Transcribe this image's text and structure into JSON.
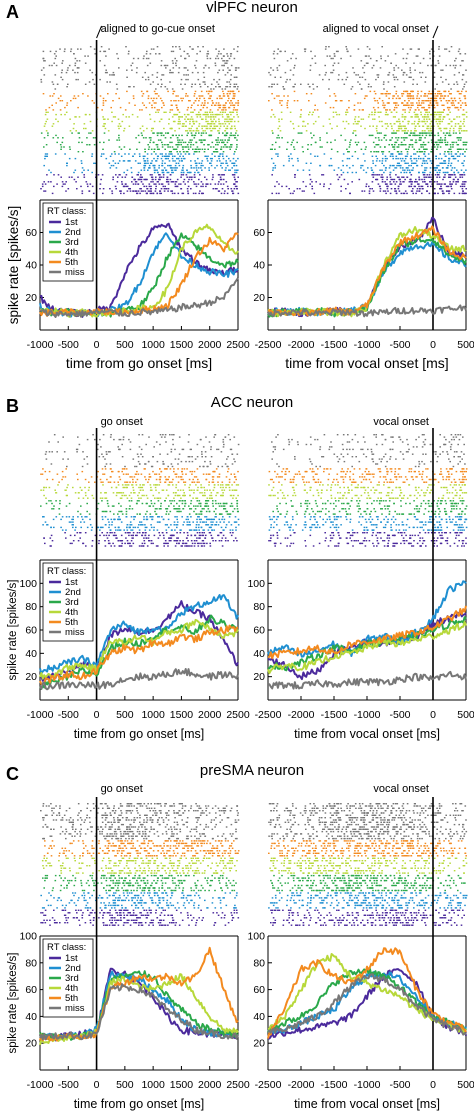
{
  "colors": {
    "1st": "#4b2a9c",
    "2nd": "#1f8fd1",
    "3rd": "#2aa84a",
    "4th": "#b7d83a",
    "5th": "#f38a1f",
    "miss": "#777777"
  },
  "chart_data": [
    {
      "type": "line",
      "panel_letter": "A",
      "title": "vlPFC neuron",
      "ylabel": "spike rate [spikes/s]",
      "ylim": [
        0,
        80
      ],
      "yticks": [
        20,
        40,
        60
      ],
      "legend": {
        "title": "RT class:",
        "entries": [
          "1st",
          "2nd",
          "3rd",
          "4th",
          "5th",
          "miss"
        ],
        "placement": "top-left"
      },
      "subplots": [
        {
          "alignment_label": "aligned to go-cue onset",
          "xlabel": "time from go onset [ms]",
          "xlim": [
            -1000,
            2500
          ],
          "xticks": [
            -1000,
            -500,
            0,
            500,
            1000,
            1500,
            2000,
            2500
          ],
          "x": [
            -1000,
            -750,
            -500,
            -250,
            0,
            250,
            500,
            750,
            1000,
            1250,
            1500,
            1750,
            2000,
            2250,
            2500
          ],
          "series": [
            {
              "name": "1st",
              "values": [
                20,
                12,
                11,
                10,
                12,
                14,
                35,
                50,
                62,
                65,
                50,
                42,
                36,
                35,
                38
              ]
            },
            {
              "name": "2nd",
              "values": [
                15,
                11,
                10,
                11,
                10,
                12,
                15,
                28,
                48,
                60,
                45,
                40,
                36,
                34,
                36
              ]
            },
            {
              "name": "3rd",
              "values": [
                12,
                10,
                12,
                10,
                11,
                10,
                13,
                14,
                25,
                45,
                58,
                52,
                44,
                40,
                42
              ]
            },
            {
              "name": "4th",
              "values": [
                11,
                12,
                10,
                11,
                10,
                11,
                12,
                13,
                14,
                25,
                50,
                60,
                64,
                52,
                48
              ]
            },
            {
              "name": "5th",
              "values": [
                10,
                11,
                11,
                10,
                12,
                11,
                11,
                12,
                13,
                15,
                28,
                45,
                55,
                50,
                60
              ]
            },
            {
              "name": "miss",
              "values": [
                11,
                10,
                10,
                10,
                11,
                11,
                10,
                11,
                11,
                12,
                14,
                15,
                17,
                20,
                32
              ]
            }
          ]
        },
        {
          "alignment_label": "aligned to vocal onset",
          "xlabel": "time from vocal onset [ms]",
          "xlim": [
            -2500,
            500
          ],
          "xticks": [
            -2500,
            -2000,
            -1500,
            -1000,
            -500,
            0,
            500
          ],
          "x": [
            -2500,
            -2250,
            -2000,
            -1750,
            -1500,
            -1250,
            -1000,
            -750,
            -500,
            -250,
            0,
            250,
            500
          ],
          "series": [
            {
              "name": "1st",
              "values": [
                11,
                12,
                10,
                11,
                12,
                11,
                14,
                38,
                52,
                55,
                68,
                48,
                45
              ]
            },
            {
              "name": "2nd",
              "values": [
                12,
                11,
                12,
                10,
                11,
                12,
                15,
                35,
                48,
                52,
                52,
                44,
                40
              ]
            },
            {
              "name": "3rd",
              "values": [
                10,
                11,
                11,
                12,
                10,
                11,
                13,
                36,
                52,
                55,
                56,
                46,
                42
              ]
            },
            {
              "name": "4th",
              "values": [
                11,
                10,
                12,
                11,
                11,
                10,
                14,
                40,
                58,
                62,
                58,
                50,
                50
              ]
            },
            {
              "name": "5th",
              "values": [
                12,
                11,
                10,
                11,
                12,
                11,
                15,
                38,
                54,
                58,
                62,
                48,
                44
              ]
            },
            {
              "name": "miss",
              "values": [
                10,
                11,
                11,
                10,
                11,
                11,
                10,
                11,
                12,
                12,
                12,
                13,
                14
              ]
            }
          ]
        }
      ]
    },
    {
      "type": "line",
      "panel_letter": "B",
      "title": "ACC neuron",
      "ylabel": "spike rate [spikes/s]",
      "ylim": [
        0,
        120
      ],
      "yticks": [
        20,
        40,
        60,
        80,
        100
      ],
      "legend": {
        "title": "RT class:",
        "entries": [
          "1st",
          "2nd",
          "3rd",
          "4th",
          "5th",
          "miss"
        ],
        "placement": "top-left"
      },
      "subplots": [
        {
          "alignment_label": "go onset",
          "xlabel": "time from go onset [ms]",
          "xlim": [
            -1000,
            2500
          ],
          "xticks": [
            -1000,
            -500,
            0,
            500,
            1000,
            1500,
            2000,
            2500
          ],
          "x": [
            -1000,
            -750,
            -500,
            -250,
            0,
            250,
            500,
            750,
            1000,
            1250,
            1500,
            1750,
            2000,
            2250,
            2500
          ],
          "series": [
            {
              "name": "1st",
              "values": [
                18,
                20,
                25,
                30,
                28,
                55,
                62,
                58,
                60,
                70,
                82,
                75,
                70,
                50,
                30
              ]
            },
            {
              "name": "2nd",
              "values": [
                25,
                28,
                32,
                35,
                30,
                60,
                65,
                58,
                62,
                60,
                75,
                80,
                85,
                88,
                70
              ]
            },
            {
              "name": "3rd",
              "values": [
                12,
                15,
                20,
                25,
                22,
                45,
                50,
                48,
                55,
                60,
                62,
                58,
                70,
                65,
                60
              ]
            },
            {
              "name": "4th",
              "values": [
                20,
                22,
                28,
                30,
                26,
                52,
                48,
                55,
                50,
                58,
                60,
                68,
                62,
                55,
                58
              ]
            },
            {
              "name": "5th",
              "values": [
                15,
                18,
                22,
                20,
                25,
                40,
                45,
                42,
                50,
                48,
                55,
                52,
                58,
                60,
                62
              ]
            },
            {
              "name": "miss",
              "values": [
                12,
                12,
                13,
                13,
                12,
                14,
                18,
                20,
                20,
                22,
                25,
                22,
                20,
                22,
                20
              ]
            }
          ]
        },
        {
          "alignment_label": "vocal onset",
          "xlabel": "time from vocal onset [ms]",
          "xlim": [
            -2500,
            500
          ],
          "xticks": [
            -2500,
            -2000,
            -1500,
            -1000,
            -500,
            0,
            500
          ],
          "x": [
            -2500,
            -2250,
            -2000,
            -1750,
            -1500,
            -1250,
            -1000,
            -750,
            -500,
            -250,
            0,
            250,
            500
          ],
          "series": [
            {
              "name": "1st",
              "values": [
                35,
                30,
                20,
                25,
                40,
                45,
                50,
                48,
                52,
                55,
                65,
                70,
                75
              ]
            },
            {
              "name": "2nd",
              "values": [
                40,
                45,
                38,
                42,
                48,
                40,
                52,
                55,
                50,
                58,
                70,
                95,
                100
              ]
            },
            {
              "name": "3rd",
              "values": [
                30,
                28,
                32,
                38,
                45,
                42,
                48,
                50,
                52,
                55,
                60,
                65,
                70
              ]
            },
            {
              "name": "4th",
              "values": [
                25,
                30,
                28,
                32,
                38,
                40,
                45,
                50,
                48,
                52,
                55,
                60,
                65
              ]
            },
            {
              "name": "5th",
              "values": [
                38,
                40,
                42,
                45,
                40,
                48,
                50,
                52,
                55,
                58,
                62,
                70,
                78
              ]
            },
            {
              "name": "miss",
              "values": [
                12,
                13,
                12,
                14,
                14,
                15,
                16,
                15,
                18,
                20,
                18,
                22,
                20
              ]
            }
          ]
        }
      ]
    },
    {
      "type": "line",
      "panel_letter": "C",
      "title": "preSMA neuron",
      "ylabel": "spike rate [spikes/s]",
      "ylim": [
        0,
        100
      ],
      "yticks": [
        20,
        40,
        60,
        80,
        100
      ],
      "legend": {
        "title": "RT class:",
        "entries": [
          "1st",
          "2nd",
          "3rd",
          "4th",
          "5th",
          "miss"
        ],
        "placement": "top-left"
      },
      "subplots": [
        {
          "alignment_label": "go onset",
          "xlabel": "time from go onset [ms]",
          "xlim": [
            -1000,
            2500
          ],
          "xticks": [
            -1000,
            -500,
            0,
            500,
            1000,
            1500,
            2000,
            2500
          ],
          "x": [
            -1000,
            -750,
            -500,
            -250,
            0,
            250,
            500,
            750,
            1000,
            1250,
            1500,
            1750,
            2000,
            2250,
            2500
          ],
          "series": [
            {
              "name": "1st",
              "values": [
                25,
                24,
                26,
                27,
                28,
                75,
                72,
                65,
                55,
                40,
                30,
                28,
                27,
                26,
                25
              ]
            },
            {
              "name": "2nd",
              "values": [
                24,
                25,
                25,
                26,
                30,
                72,
                70,
                68,
                60,
                52,
                38,
                30,
                28,
                27,
                26
              ]
            },
            {
              "name": "3rd",
              "values": [
                26,
                25,
                24,
                26,
                28,
                68,
                70,
                72,
                70,
                55,
                45,
                35,
                30,
                28,
                27
              ]
            },
            {
              "name": "4th",
              "values": [
                20,
                22,
                24,
                25,
                28,
                65,
                68,
                62,
                60,
                65,
                70,
                55,
                40,
                30,
                28
              ]
            },
            {
              "name": "5th",
              "values": [
                24,
                24,
                25,
                25,
                27,
                62,
                65,
                70,
                68,
                70,
                65,
                70,
                90,
                60,
                35
              ]
            },
            {
              "name": "miss",
              "values": [
                25,
                25,
                26,
                25,
                27,
                60,
                62,
                60,
                55,
                45,
                38,
                30,
                28,
                26,
                25
              ]
            }
          ]
        },
        {
          "alignment_label": "vocal onset",
          "xlabel": "time from vocal onset [ms]",
          "xlim": [
            -2500,
            500
          ],
          "xticks": [
            -2500,
            -2000,
            -1500,
            -1000,
            -500,
            0,
            500
          ],
          "x": [
            -2500,
            -2250,
            -2000,
            -1750,
            -1500,
            -1250,
            -1000,
            -750,
            -500,
            -250,
            0,
            250,
            500
          ],
          "series": [
            {
              "name": "1st",
              "values": [
                25,
                28,
                30,
                32,
                35,
                40,
                55,
                70,
                75,
                65,
                40,
                32,
                28
              ]
            },
            {
              "name": "2nd",
              "values": [
                28,
                30,
                35,
                40,
                45,
                60,
                70,
                72,
                68,
                55,
                40,
                35,
                30
              ]
            },
            {
              "name": "3rd",
              "values": [
                30,
                35,
                40,
                50,
                65,
                72,
                75,
                70,
                62,
                50,
                40,
                35,
                30
              ]
            },
            {
              "name": "4th",
              "values": [
                30,
                40,
                60,
                80,
                85,
                70,
                65,
                60,
                55,
                45,
                38,
                32,
                30
              ]
            },
            {
              "name": "5th",
              "values": [
                25,
                45,
                75,
                80,
                70,
                65,
                75,
                90,
                88,
                60,
                42,
                35,
                30
              ]
            },
            {
              "name": "miss",
              "values": [
                28,
                30,
                35,
                40,
                50,
                62,
                70,
                68,
                60,
                48,
                38,
                32,
                28
              ]
            }
          ]
        }
      ]
    }
  ]
}
